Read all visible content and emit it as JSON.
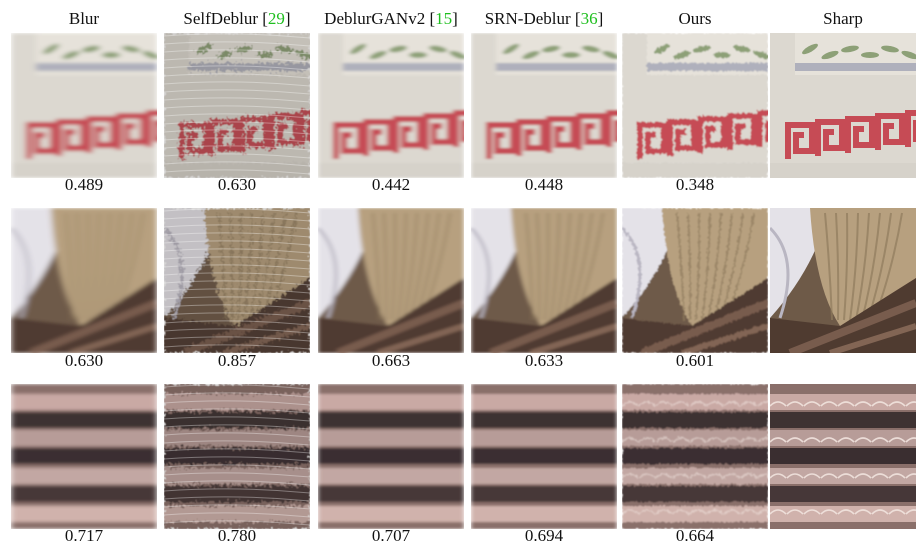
{
  "columns": [
    {
      "name": "Blur",
      "ref": ""
    },
    {
      "name": "SelfDeblur",
      "ref": "29"
    },
    {
      "name": "DeblurGANv2",
      "ref": "15"
    },
    {
      "name": "SRN-Deblur",
      "ref": "36"
    },
    {
      "name": "Ours",
      "ref": ""
    },
    {
      "name": "Sharp",
      "ref": ""
    }
  ],
  "rows": [
    {
      "scene": "wall-with-meander-pattern",
      "scores": [
        "0.489",
        "0.630",
        "0.442",
        "0.448",
        "0.348",
        ""
      ]
    },
    {
      "scene": "seashell",
      "scores": [
        "0.630",
        "0.857",
        "0.663",
        "0.633",
        "0.601",
        ""
      ]
    },
    {
      "scene": "roof-tiles",
      "scores": [
        "0.717",
        "0.780",
        "0.707",
        "0.694",
        "0.664",
        ""
      ]
    }
  ],
  "colors": {
    "citation": "#1fbf1f",
    "meander_red": "#c43c48"
  }
}
